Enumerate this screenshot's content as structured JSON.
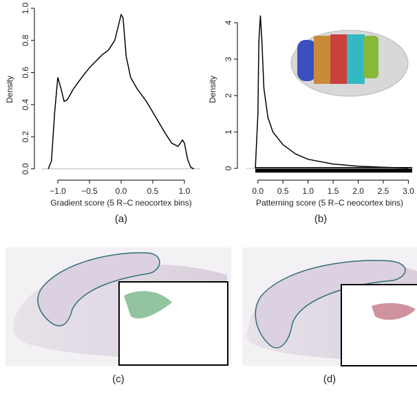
{
  "chart_data": [
    {
      "type": "line",
      "x_label": "Gradient score (5 R–C neocortex bins)",
      "y_label": "Density",
      "xlim": [
        -1.25,
        1.25
      ],
      "ylim": [
        -0.04,
        1.03
      ],
      "xticks": [
        {
          "value": -1,
          "label": "−1.0"
        },
        {
          "value": -0.5,
          "label": "−0.5"
        },
        {
          "value": 0,
          "label": "0.0"
        },
        {
          "value": 0.5,
          "label": "0.5"
        },
        {
          "value": 1,
          "label": "1.0"
        }
      ],
      "yticks": [
        {
          "value": 0,
          "label": "0.0"
        },
        {
          "value": 0.2,
          "label": "0.2"
        },
        {
          "value": 0.4,
          "label": "0.4"
        },
        {
          "value": 0.6,
          "label": "0.6"
        },
        {
          "value": 0.8,
          "label": "0.8"
        },
        {
          "value": 1,
          "label": "1.0"
        }
      ],
      "color": "#000000",
      "x": [
        -1.15,
        -1.1,
        -1.05,
        -1.0,
        -0.95,
        -0.9,
        -0.85,
        -0.75,
        -0.6,
        -0.5,
        -0.4,
        -0.3,
        -0.2,
        -0.1,
        -0.05,
        0,
        0.03,
        0.08,
        0.15,
        0.25,
        0.4,
        0.55,
        0.7,
        0.8,
        0.9,
        0.97,
        1.0,
        1.05,
        1.1,
        1.15
      ],
      "values": [
        0,
        0.05,
        0.35,
        0.57,
        0.5,
        0.42,
        0.43,
        0.5,
        0.58,
        0.63,
        0.67,
        0.71,
        0.74,
        0.8,
        0.88,
        0.96,
        0.94,
        0.7,
        0.57,
        0.5,
        0.42,
        0.32,
        0.22,
        0.16,
        0.14,
        0.18,
        0.16,
        0.06,
        0.01,
        0
      ]
    },
    {
      "type": "line",
      "x_label": "Patterning score (5 R–C neocortex bins)",
      "y_label": "Density",
      "xlim": [
        -0.23,
        3.09
      ],
      "ylim": [
        -0.19,
        4.53
      ],
      "xticks": [
        {
          "value": 0,
          "label": "0.0"
        },
        {
          "value": 0.5,
          "label": "0.5"
        },
        {
          "value": 1,
          "label": "1.0"
        },
        {
          "value": 1.5,
          "label": "1.5"
        },
        {
          "value": 2,
          "label": "2.0"
        },
        {
          "value": 2.5,
          "label": "2.5"
        },
        {
          "value": 3,
          "label": "3.0"
        }
      ],
      "yticks": [
        0,
        1,
        2,
        3,
        4
      ],
      "color": "#000000",
      "x": [
        -0.05,
        0,
        0.02,
        0.05,
        0.08,
        0.12,
        0.2,
        0.3,
        0.5,
        0.75,
        1.0,
        1.5,
        2.0,
        2.5,
        3.0
      ],
      "values": [
        0,
        1.5,
        3.5,
        4.2,
        3.5,
        2.2,
        1.4,
        1.0,
        0.65,
        0.4,
        0.25,
        0.12,
        0.06,
        0.03,
        0.01
      ]
    }
  ],
  "panel_labels": [
    "(a)",
    "(b)",
    "(c)",
    "(d)"
  ]
}
